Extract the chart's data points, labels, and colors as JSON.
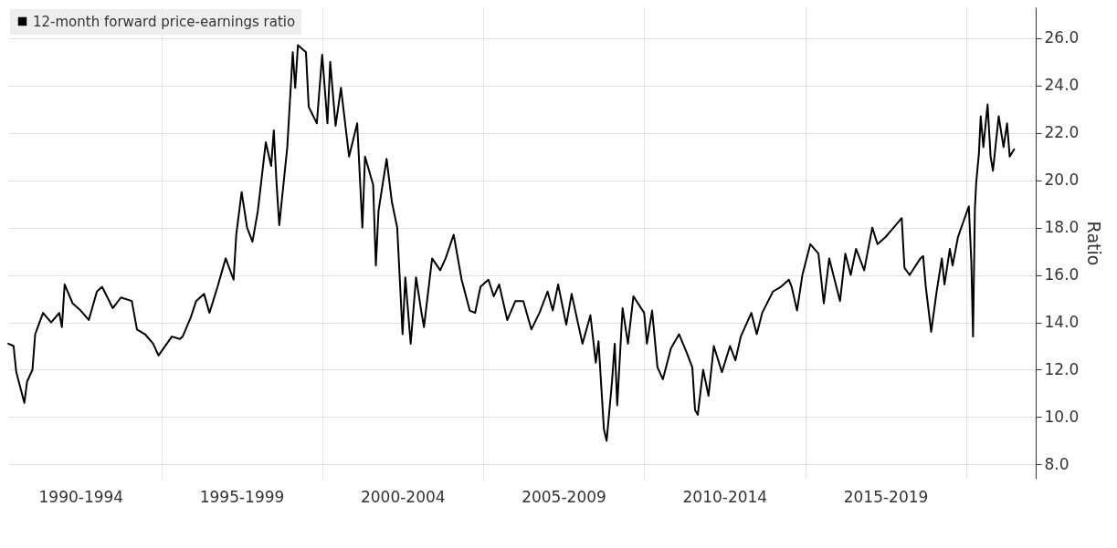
{
  "chart_data": {
    "type": "line",
    "ylabel": "Ratio",
    "legend": "top left",
    "grid": true,
    "line_style": "solid",
    "xlim": [
      "1990-04-01",
      "2022-03-01"
    ],
    "ylim": [
      7.4,
      27.3
    ],
    "xticks": [
      {
        "value": "1992-07-01",
        "label": "1990-1994"
      },
      {
        "value": "1995-01-01",
        "label": null
      },
      {
        "value": "1997-07-01",
        "label": "1995-1999"
      },
      {
        "value": "2000-01-01",
        "label": null
      },
      {
        "value": "2002-07-01",
        "label": "2000-2004"
      },
      {
        "value": "2005-01-01",
        "label": null
      },
      {
        "value": "2007-07-01",
        "label": "2005-2009"
      },
      {
        "value": "2010-01-01",
        "label": null
      },
      {
        "value": "2012-07-01",
        "label": "2010-2014"
      },
      {
        "value": "2015-01-01",
        "label": null
      },
      {
        "value": "2017-07-01",
        "label": "2015-2019"
      },
      {
        "value": "2020-01-01",
        "label": null
      }
    ],
    "yticks": [
      {
        "value": 8,
        "label": "8.0"
      },
      {
        "value": 10,
        "label": "10.0"
      },
      {
        "value": 12,
        "label": "12.0"
      },
      {
        "value": 14,
        "label": "14.0"
      },
      {
        "value": 16,
        "label": "16.0"
      },
      {
        "value": 18,
        "label": "18.0"
      },
      {
        "value": 20,
        "label": "20.0"
      },
      {
        "value": 22,
        "label": "22.0"
      },
      {
        "value": 24,
        "label": "24.0"
      },
      {
        "value": 26,
        "label": "26.0"
      }
    ],
    "x": [
      "1990-04",
      "1990-06",
      "1990-07",
      "1990-10",
      "1990-11",
      "1991-01",
      "1991-02",
      "1991-05",
      "1991-08",
      "1991-11",
      "1991-12",
      "1992-01",
      "1992-04",
      "1992-07",
      "1992-10",
      "1993-01",
      "1993-03",
      "1993-07",
      "1993-10",
      "1994-02",
      "1994-04",
      "1994-07",
      "1994-10",
      "1994-12",
      "1995-05",
      "1995-08",
      "1995-09",
      "1995-12",
      "1996-02",
      "1996-05",
      "1996-07",
      "1996-10",
      "1997-01",
      "1997-04",
      "1997-05",
      "1997-07",
      "1997-09",
      "1997-11",
      "1998-01",
      "1998-04",
      "1998-06",
      "1998-07",
      "1998-08",
      "1998-09",
      "1998-12",
      "1999-02",
      "1999-03",
      "1999-04",
      "1999-07",
      "1999-08",
      "1999-11",
      "2000-01",
      "2000-03",
      "2000-04",
      "2000-06",
      "2000-08",
      "2000-11",
      "2001-02",
      "2001-04",
      "2001-05",
      "2001-08",
      "2001-09",
      "2001-10",
      "2002-01",
      "2002-03",
      "2002-05",
      "2002-07",
      "2002-08",
      "2002-10",
      "2002-12",
      "2003-02",
      "2003-03",
      "2003-06",
      "2003-09",
      "2003-11",
      "2004-02",
      "2004-05",
      "2004-08",
      "2004-10",
      "2004-12",
      "2005-03",
      "2005-05",
      "2005-07",
      "2005-10",
      "2006-01",
      "2006-04",
      "2006-07",
      "2006-10",
      "2007-01",
      "2007-03",
      "2007-05",
      "2007-08",
      "2007-10",
      "2008-02",
      "2008-05",
      "2008-07",
      "2008-08",
      "2008-10",
      "2008-11",
      "2009-01",
      "2009-02",
      "2009-03",
      "2009-05",
      "2009-07",
      "2009-09",
      "2010-01",
      "2010-02",
      "2010-04",
      "2010-06",
      "2010-08",
      "2010-11",
      "2011-02",
      "2011-05",
      "2011-07",
      "2011-08",
      "2011-09",
      "2011-11",
      "2012-01",
      "2012-03",
      "2012-06",
      "2012-09",
      "2012-11",
      "2013-01",
      "2013-05",
      "2013-07",
      "2013-09",
      "2014-01",
      "2014-04",
      "2014-07",
      "2014-08",
      "2014-10",
      "2014-12",
      "2015-03",
      "2015-06",
      "2015-08",
      "2015-10",
      "2016-02",
      "2016-04",
      "2016-06",
      "2016-08",
      "2016-11",
      "2017-02",
      "2017-04",
      "2017-07",
      "2017-10",
      "2018-01",
      "2018-02",
      "2018-04",
      "2018-08",
      "2018-09",
      "2018-10",
      "2018-12",
      "2019-02",
      "2019-04",
      "2019-05",
      "2019-07",
      "2019-08",
      "2019-10",
      "2020-02",
      "2020-03-01",
      "2020-03-20",
      "2020-04-10",
      "2020-04-25",
      "2020-05-25",
      "2020-06-15",
      "2020-07-15",
      "2020-09-01",
      "2020-10-05",
      "2020-11-01",
      "2021-01-05",
      "2021-03-01",
      "2021-04-10",
      "2021-05-10",
      "2021-06-28"
    ],
    "series": [
      {
        "name": "12-month forward price-earnings ratio",
        "color": "#000000",
        "values": [
          13.1,
          13.0,
          11.9,
          10.6,
          11.5,
          12.0,
          13.5,
          14.4,
          14.0,
          14.4,
          13.8,
          15.6,
          14.8,
          14.5,
          14.1,
          15.3,
          15.5,
          14.6,
          15.05,
          14.9,
          13.7,
          13.5,
          13.1,
          12.6,
          13.4,
          13.3,
          13.4,
          14.2,
          14.9,
          15.2,
          14.4,
          15.5,
          16.7,
          15.8,
          17.7,
          19.5,
          18.0,
          17.4,
          18.7,
          21.6,
          20.6,
          22.1,
          19.9,
          18.1,
          21.4,
          25.4,
          23.9,
          25.7,
          25.4,
          23.1,
          22.4,
          25.3,
          22.4,
          25.0,
          22.3,
          23.9,
          21.0,
          22.4,
          18.0,
          21.0,
          19.8,
          16.4,
          18.7,
          20.9,
          19.1,
          18.0,
          13.5,
          15.9,
          13.1,
          15.9,
          14.4,
          13.8,
          16.7,
          16.2,
          16.7,
          17.7,
          15.8,
          14.5,
          14.4,
          15.5,
          15.8,
          15.1,
          15.6,
          14.1,
          14.9,
          14.9,
          13.7,
          14.4,
          15.3,
          14.5,
          15.6,
          13.9,
          15.2,
          13.1,
          14.3,
          12.3,
          13.2,
          9.5,
          9.0,
          11.5,
          13.1,
          10.5,
          14.6,
          13.1,
          15.1,
          14.4,
          13.1,
          14.5,
          12.1,
          11.6,
          12.9,
          13.5,
          12.7,
          12.1,
          10.3,
          10.1,
          12.0,
          10.9,
          13.0,
          11.9,
          13.0,
          12.4,
          13.4,
          14.4,
          13.5,
          14.4,
          15.3,
          15.5,
          15.8,
          15.5,
          14.5,
          16.0,
          17.3,
          16.9,
          14.8,
          16.7,
          14.9,
          16.9,
          16.0,
          17.1,
          16.2,
          18.0,
          17.3,
          17.6,
          18.0,
          18.4,
          16.3,
          16.0,
          16.7,
          16.8,
          15.5,
          13.6,
          15.3,
          16.7,
          15.6,
          17.1,
          16.4,
          17.6,
          18.9,
          16.5,
          13.4,
          18.8,
          19.9,
          21.1,
          22.7,
          21.4,
          23.2,
          21.0,
          20.4,
          22.7,
          21.4,
          22.4,
          21.0,
          21.3
        ]
      }
    ]
  }
}
